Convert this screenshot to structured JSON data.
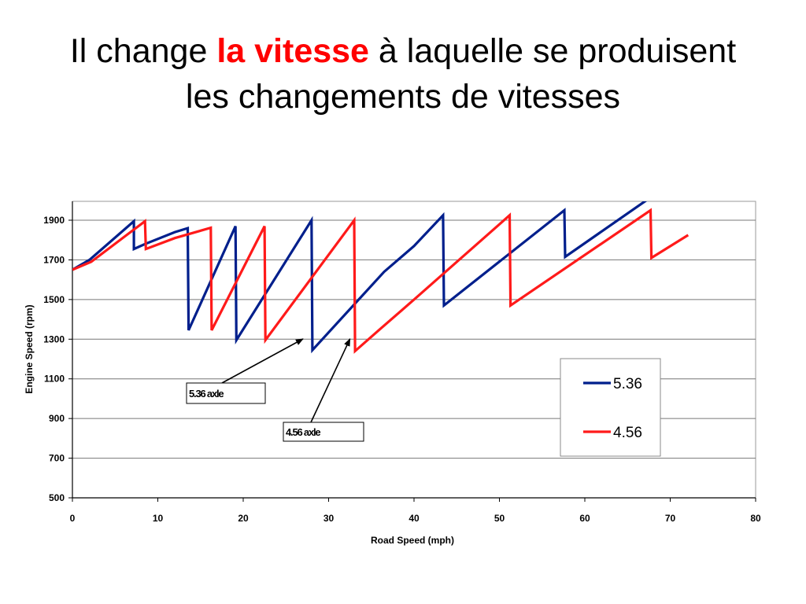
{
  "title": {
    "part1": "Il change ",
    "highlight": "la vitesse",
    "part2": " à laquelle se produisent",
    "line2": "les changements de vitesses"
  },
  "colors": {
    "highlight": "#ff0000",
    "series_536": "#001f8c",
    "series_456": "#ff1a1a",
    "grid": "#777777"
  },
  "chart_data": {
    "type": "line",
    "xlabel": "Road Speed (mph)",
    "ylabel": "Engine Speed (rpm)",
    "xlim": [
      0,
      80
    ],
    "ylim": [
      500,
      2000
    ],
    "xticks": [
      0,
      10,
      20,
      30,
      40,
      50,
      60,
      70,
      80
    ],
    "yticks": [
      500,
      700,
      900,
      1100,
      1300,
      1500,
      1700,
      1900
    ],
    "grid": "horizontal",
    "legend_position": "bottom-right",
    "series": [
      {
        "name": "5.36",
        "points": [
          [
            0,
            1650
          ],
          [
            2,
            1700
          ],
          [
            7.2,
            1895
          ],
          [
            7.2,
            1755
          ],
          [
            8.5,
            1780
          ],
          [
            12,
            1840
          ],
          [
            13.5,
            1860
          ],
          [
            13.6,
            1345
          ],
          [
            19.1,
            1870
          ],
          [
            19.2,
            1295
          ],
          [
            28,
            1900
          ],
          [
            28.1,
            1245
          ],
          [
            36.5,
            1640
          ],
          [
            40,
            1770
          ],
          [
            43.4,
            1925
          ],
          [
            43.5,
            1470
          ],
          [
            57.6,
            1950
          ],
          [
            57.7,
            1715
          ],
          [
            67.2,
            2000
          ]
        ]
      },
      {
        "name": "4.56",
        "points": [
          [
            0,
            1650
          ],
          [
            2.2,
            1690
          ],
          [
            6.5,
            1830
          ],
          [
            8.5,
            1895
          ],
          [
            8.6,
            1755
          ],
          [
            12,
            1810
          ],
          [
            16.2,
            1862
          ],
          [
            16.3,
            1345
          ],
          [
            22.5,
            1870
          ],
          [
            22.6,
            1295
          ],
          [
            33,
            1900
          ],
          [
            33.1,
            1240
          ],
          [
            36,
            1350
          ],
          [
            40,
            1500
          ],
          [
            51.2,
            1925
          ],
          [
            51.3,
            1470
          ],
          [
            67.7,
            1950
          ],
          [
            67.8,
            1710
          ],
          [
            72.1,
            1825
          ]
        ]
      }
    ],
    "annotations": [
      {
        "text": "5.36 axle",
        "target": [
          27,
          1230
        ]
      },
      {
        "text": "4.56 axle",
        "target": [
          32.5,
          1230
        ]
      }
    ]
  }
}
